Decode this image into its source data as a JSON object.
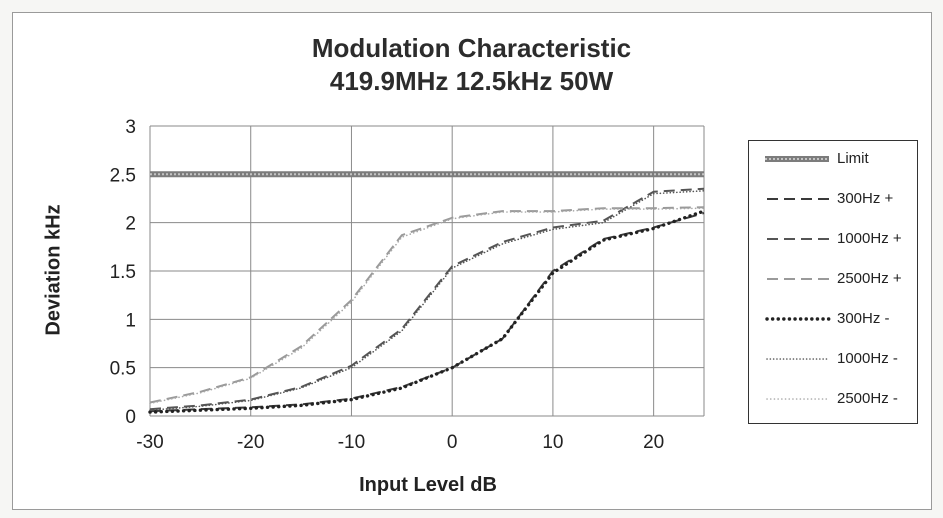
{
  "chart_data": {
    "type": "line",
    "title": "Modulation Characteristic",
    "subtitle": "419.9MHz 12.5kHz 50W",
    "xlabel": "Input Level dB",
    "ylabel": "Deviation kHz",
    "xlim": [
      -30,
      25
    ],
    "ylim": [
      0,
      3
    ],
    "x_ticks": [
      -30,
      -20,
      -10,
      0,
      10,
      20
    ],
    "y_ticks": [
      0,
      0.5,
      1,
      1.5,
      2,
      2.5,
      3
    ],
    "x_tick_labels": [
      "-30",
      "-20",
      "-10",
      "0",
      "10",
      "20"
    ],
    "y_tick_labels": [
      "0",
      "0.5",
      "1",
      "1.5",
      "2",
      "2.5",
      "3"
    ],
    "grid": true,
    "legend_position": "right",
    "series": [
      {
        "name": "Limit",
        "style": "limit",
        "color": "#8c8c8c",
        "x": [
          -30,
          25
        ],
        "y": [
          2.5,
          2.5
        ]
      },
      {
        "name": "300Hz +",
        "style": "dash",
        "color": "#3a3a3a",
        "x": [
          -30,
          -25,
          -20,
          -15,
          -10,
          -5,
          0,
          5,
          10,
          15,
          20,
          25
        ],
        "y": [
          0.05,
          0.07,
          0.09,
          0.12,
          0.18,
          0.3,
          0.5,
          0.8,
          1.5,
          1.83,
          1.95,
          2.1
        ]
      },
      {
        "name": "1000Hz +",
        "style": "dash",
        "color": "#555555",
        "x": [
          -30,
          -25,
          -20,
          -15,
          -10,
          -5,
          0,
          5,
          10,
          15,
          20,
          25
        ],
        "y": [
          0.07,
          0.11,
          0.17,
          0.3,
          0.52,
          0.9,
          1.55,
          1.8,
          1.95,
          2.02,
          2.32,
          2.35
        ]
      },
      {
        "name": "2500Hz +",
        "style": "dash",
        "color": "#9a9a9a",
        "x": [
          -30,
          -25,
          -20,
          -15,
          -10,
          -5,
          0,
          5,
          10,
          15,
          20,
          25
        ],
        "y": [
          0.14,
          0.25,
          0.4,
          0.72,
          1.2,
          1.87,
          2.05,
          2.12,
          2.12,
          2.15,
          2.15,
          2.16
        ]
      },
      {
        "name": "300Hz -",
        "style": "dot-heavy",
        "color": "#222222",
        "x": [
          -30,
          -25,
          -20,
          -15,
          -10,
          -5,
          0,
          5,
          10,
          15,
          20,
          25
        ],
        "y": [
          0.04,
          0.06,
          0.08,
          0.11,
          0.17,
          0.29,
          0.5,
          0.8,
          1.48,
          1.82,
          1.94,
          2.12
        ]
      },
      {
        "name": "1000Hz -",
        "style": "dot-fine",
        "color": "#555555",
        "x": [
          -30,
          -25,
          -20,
          -15,
          -10,
          -5,
          0,
          5,
          10,
          15,
          20,
          25
        ],
        "y": [
          0.06,
          0.1,
          0.16,
          0.29,
          0.5,
          0.88,
          1.53,
          1.78,
          1.93,
          2.0,
          2.3,
          2.33
        ]
      },
      {
        "name": "2500Hz -",
        "style": "dot-light",
        "color": "#a8a8a8",
        "x": [
          -30,
          -25,
          -20,
          -15,
          -10,
          -5,
          0,
          5,
          10,
          15,
          20,
          25
        ],
        "y": [
          0.13,
          0.24,
          0.39,
          0.7,
          1.18,
          1.85,
          2.04,
          2.11,
          2.11,
          2.14,
          2.14,
          2.15
        ]
      }
    ]
  }
}
